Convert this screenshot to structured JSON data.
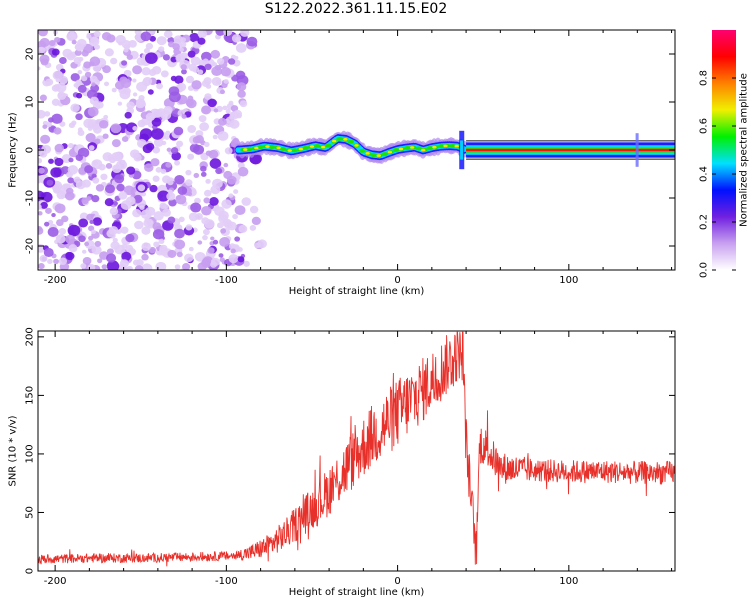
{
  "title": "S122.2022.361.11.15.E02",
  "chart_data": [
    {
      "type": "heatmap",
      "xlabel": "Height of straight line (km)",
      "ylabel": "Frequency (Hz)",
      "xlim": [
        -210,
        162
      ],
      "ylim": [
        -25,
        25
      ],
      "xticks": [
        -200,
        -100,
        0,
        100
      ],
      "yticks": [
        -20,
        -10,
        0,
        10,
        20
      ],
      "colorbar": {
        "label": "Normalized spectral amplitude",
        "range": [
          0,
          1
        ],
        "ticks": [
          0.0,
          0.2,
          0.4,
          0.6,
          0.8
        ],
        "colors": [
          "#ffffff",
          "#c8a0f0",
          "#7020e0",
          "#0010ff",
          "#00e0ff",
          "#00f000",
          "#f0f000",
          "#ff8000",
          "#ff0000",
          "#ff0070"
        ]
      },
      "signal_track": {
        "description": "",
        "points": [
          [
            -92,
            0.0
          ],
          [
            -85,
            0.2
          ],
          [
            -78,
            0.8
          ],
          [
            -70,
            0.5
          ],
          [
            -62,
            -0.2
          ],
          [
            -55,
            0.3
          ],
          [
            -48,
            0.9
          ],
          [
            -42,
            0.5
          ],
          [
            -35,
            2.4
          ],
          [
            -30,
            2.2
          ],
          [
            -25,
            1.3
          ],
          [
            -20,
            -0.4
          ],
          [
            -15,
            -1.0
          ],
          [
            -10,
            -1.2
          ],
          [
            -5,
            -0.5
          ],
          [
            0,
            0.1
          ],
          [
            5,
            0.4
          ],
          [
            10,
            0.6
          ],
          [
            15,
            0.0
          ],
          [
            20,
            0.5
          ],
          [
            25,
            0.8
          ],
          [
            30,
            0.9
          ],
          [
            35,
            0.8
          ],
          [
            40,
            0.0
          ],
          [
            100,
            0.0
          ],
          [
            162,
            0.0
          ]
        ]
      }
    },
    {
      "type": "line",
      "xlabel": "Height of straight line (km)",
      "ylabel": "SNR (10 * v/v)",
      "xlim": [
        -210,
        162
      ],
      "ylim": [
        0,
        205
      ],
      "xticks": [
        -200,
        -100,
        0,
        100
      ],
      "yticks": [
        0,
        50,
        100,
        150,
        200
      ],
      "color": "#e8302a",
      "series": [
        {
          "name": "",
          "envelope": [
            [
              -210,
              10
            ],
            [
              -180,
              11
            ],
            [
              -150,
              11
            ],
            [
              -120,
              12
            ],
            [
              -95,
              13
            ],
            [
              -85,
              16
            ],
            [
              -75,
              22
            ],
            [
              -65,
              32
            ],
            [
              -55,
              47
            ],
            [
              -45,
              60
            ],
            [
              -35,
              78
            ],
            [
              -25,
              97
            ],
            [
              -15,
              115
            ],
            [
              -5,
              128
            ],
            [
              5,
              142
            ],
            [
              15,
              155
            ],
            [
              25,
              170
            ],
            [
              33,
              183
            ],
            [
              38,
              192
            ],
            [
              40,
              110
            ],
            [
              44,
              45
            ],
            [
              46,
              15
            ],
            [
              48,
              110
            ],
            [
              52,
              105
            ],
            [
              60,
              88
            ],
            [
              80,
              86
            ],
            [
              100,
              85
            ],
            [
              120,
              85
            ],
            [
              140,
              84
            ],
            [
              162,
              84
            ]
          ],
          "noise_amplitude": [
            [
              -210,
              4
            ],
            [
              -95,
              4
            ],
            [
              -75,
              10
            ],
            [
              -30,
              25
            ],
            [
              0,
              30
            ],
            [
              38,
              25
            ],
            [
              46,
              20
            ],
            [
              55,
              15
            ],
            [
              80,
              10
            ],
            [
              162,
              10
            ]
          ]
        }
      ]
    }
  ]
}
